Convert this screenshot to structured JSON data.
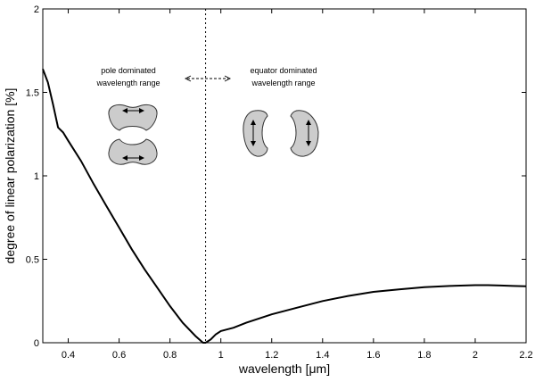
{
  "chart_data": {
    "type": "line",
    "xlabel": "wavelength [μm]",
    "ylabel": "degree of linear polarization [%]",
    "xlim": [
      0.3,
      2.2
    ],
    "ylim": [
      0,
      2
    ],
    "x_ticks": [
      "0.4",
      "0.6",
      "0.8",
      "1",
      "1.2",
      "1.4",
      "1.6",
      "1.8",
      "2",
      "2.2"
    ],
    "y_ticks": [
      "0",
      "0.5",
      "1",
      "1.5",
      "2"
    ],
    "grid": false,
    "legend": "none",
    "series": [
      {
        "x": [
          0.3,
          0.32,
          0.34,
          0.36,
          0.38,
          0.4,
          0.45,
          0.5,
          0.55,
          0.6,
          0.65,
          0.7,
          0.75,
          0.8,
          0.85,
          0.9,
          0.93,
          0.94,
          0.96,
          0.98,
          1.0,
          1.05,
          1.1,
          1.2,
          1.3,
          1.4,
          1.5,
          1.6,
          1.7,
          1.8,
          1.9,
          2.0,
          2.05,
          2.1,
          2.15,
          2.2
        ],
        "y": [
          1.64,
          1.56,
          1.43,
          1.29,
          1.26,
          1.21,
          1.09,
          0.95,
          0.82,
          0.69,
          0.56,
          0.44,
          0.33,
          0.22,
          0.12,
          0.04,
          0.0,
          0.0,
          0.02,
          0.05,
          0.07,
          0.09,
          0.12,
          0.17,
          0.21,
          0.25,
          0.28,
          0.305,
          0.32,
          0.333,
          0.34,
          0.345,
          0.345,
          0.343,
          0.34,
          0.338
        ]
      }
    ],
    "reference_line": {
      "x": 0.94,
      "style": "dotted"
    },
    "annotations": {
      "left": [
        "pole dominated",
        "wavelength range"
      ],
      "right": [
        "equator dominated",
        "wavelength range"
      ]
    }
  }
}
